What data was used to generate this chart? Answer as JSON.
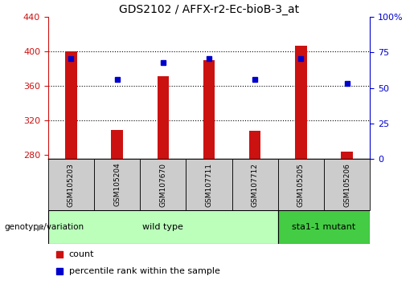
{
  "title": "GDS2102 / AFFX-r2-Ec-bioB-3_at",
  "sample_labels": [
    "GSM105203",
    "GSM105204",
    "GSM107670",
    "GSM107711",
    "GSM107712",
    "GSM105205",
    "GSM105206"
  ],
  "count_values": [
    400,
    309,
    371,
    390,
    308,
    407,
    284
  ],
  "percentile_values": [
    71,
    56,
    68,
    71,
    56,
    71,
    53
  ],
  "ylim_left": [
    275,
    440
  ],
  "ylim_right": [
    0,
    100
  ],
  "yticks_left": [
    280,
    320,
    360,
    400,
    440
  ],
  "yticks_right": [
    0,
    25,
    50,
    75,
    100
  ],
  "ytick_labels_right": [
    "0",
    "25",
    "50",
    "75",
    "100%"
  ],
  "grid_values": [
    320,
    360,
    400
  ],
  "bar_color": "#cc1111",
  "dot_color": "#0000cc",
  "bar_bottom": 275,
  "wild_type_samples": [
    0,
    1,
    2,
    3,
    4
  ],
  "mutant_samples": [
    5,
    6
  ],
  "wild_type_label": "wild type",
  "mutant_label": "sta1-1 mutant",
  "genotype_label": "genotype/variation",
  "legend_count": "count",
  "legend_percentile": "percentile rank within the sample",
  "wild_type_color": "#bbffbb",
  "mutant_color": "#44cc44",
  "tick_bg_color": "#cccccc",
  "title_fontsize": 10,
  "tick_fontsize": 8,
  "bar_width": 0.25
}
